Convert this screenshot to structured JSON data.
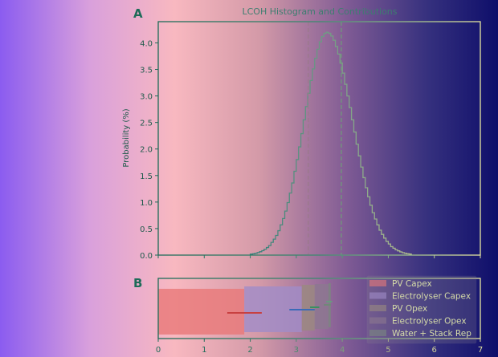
{
  "chart_data": [
    {
      "panel_label": "A",
      "type": "histogram",
      "title": "LCOH Histogram and Contributions",
      "xlabel": "",
      "ylabel": "Probability (%)",
      "xlim": [
        0,
        7
      ],
      "ylim": [
        0,
        4.4
      ],
      "yticks": [
        "0.0",
        "0.5",
        "1.0",
        "1.5",
        "2.0",
        "2.5",
        "3.0",
        "3.5",
        "4.0"
      ],
      "bin_start": 2.0,
      "bin_width": 0.05,
      "values": [
        0.018,
        0.025,
        0.034,
        0.047,
        0.063,
        0.083,
        0.11,
        0.143,
        0.18,
        0.24,
        0.3,
        0.37,
        0.46,
        0.57,
        0.69,
        0.83,
        0.99,
        1.17,
        1.36,
        1.58,
        1.8,
        2.04,
        2.29,
        2.55,
        2.8,
        3.05,
        3.29,
        3.51,
        3.71,
        3.88,
        4.02,
        4.12,
        4.18,
        4.2,
        4.18,
        4.13,
        4.05,
        3.93,
        3.79,
        3.62,
        3.43,
        3.22,
        3.0,
        2.78,
        2.55,
        2.32,
        2.09,
        1.87,
        1.66,
        1.46,
        1.27,
        1.1,
        0.94,
        0.8,
        0.68,
        0.57,
        0.47,
        0.39,
        0.32,
        0.26,
        0.21,
        0.16,
        0.13,
        0.1,
        0.08,
        0.06,
        0.045,
        0.035,
        0.026,
        0.02
      ],
      "vlines": [
        3.26,
        3.98
      ],
      "grid": false
    },
    {
      "panel_label": "B",
      "type": "stacked-horizontal-bar",
      "xlim": [
        0,
        7
      ],
      "xticks": [
        "0",
        "1",
        "2",
        "3",
        "4",
        "5",
        "6",
        "7"
      ],
      "legend_position": "right",
      "series": [
        {
          "name": "PV Capex",
          "start": 0,
          "value": 1.87,
          "err": [
            1.5,
            2.25
          ],
          "color": "#e87878",
          "err_color": "#c84040"
        },
        {
          "name": "Electrolyser Capex",
          "start": 1.87,
          "value": 1.25,
          "err": [
            2.85,
            3.4
          ],
          "color": "#a08cc8",
          "err_color": "#3a6ab8"
        },
        {
          "name": "PV Opex",
          "start": 3.12,
          "value": 0.28,
          "err": [
            3.3,
            3.5
          ],
          "color": "#9a8a80",
          "err_color": "#3a9060"
        },
        {
          "name": "Electrolyser Opex",
          "start": 3.4,
          "value": 0.3,
          "err": [
            3.6,
            3.75
          ],
          "color": "#8c7890",
          "err_color": "#708878"
        },
        {
          "name": "Water + Stack Rep",
          "start": 3.7,
          "value": 0.05,
          "err": [
            3.65,
            3.78
          ],
          "color": "#7a8880",
          "err_color": "#6a9880"
        }
      ]
    }
  ]
}
